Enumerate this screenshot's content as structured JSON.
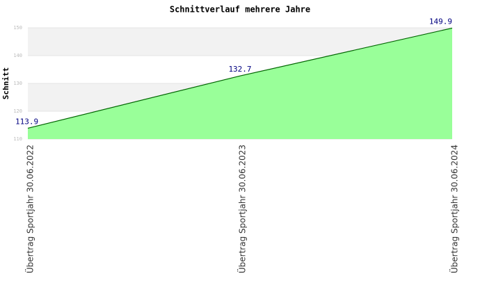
{
  "chart_data": {
    "type": "area",
    "title": "Schnittverlauf mehrere Jahre",
    "y_label": "Schnitt",
    "categories": [
      "Übertrag Sportjahr 30.06.2022",
      "Übertrag Sportjahr 30.06.2023",
      "Übertrag Sportjahr 30.06.2024"
    ],
    "values": [
      113.9,
      132.7,
      149.9
    ],
    "color": "#99ff99",
    "line_color": "#006400",
    "label_color": "#000080",
    "ylim": [
      110,
      150
    ],
    "yticks": [
      110,
      120,
      130,
      140,
      150
    ],
    "grid": true
  }
}
